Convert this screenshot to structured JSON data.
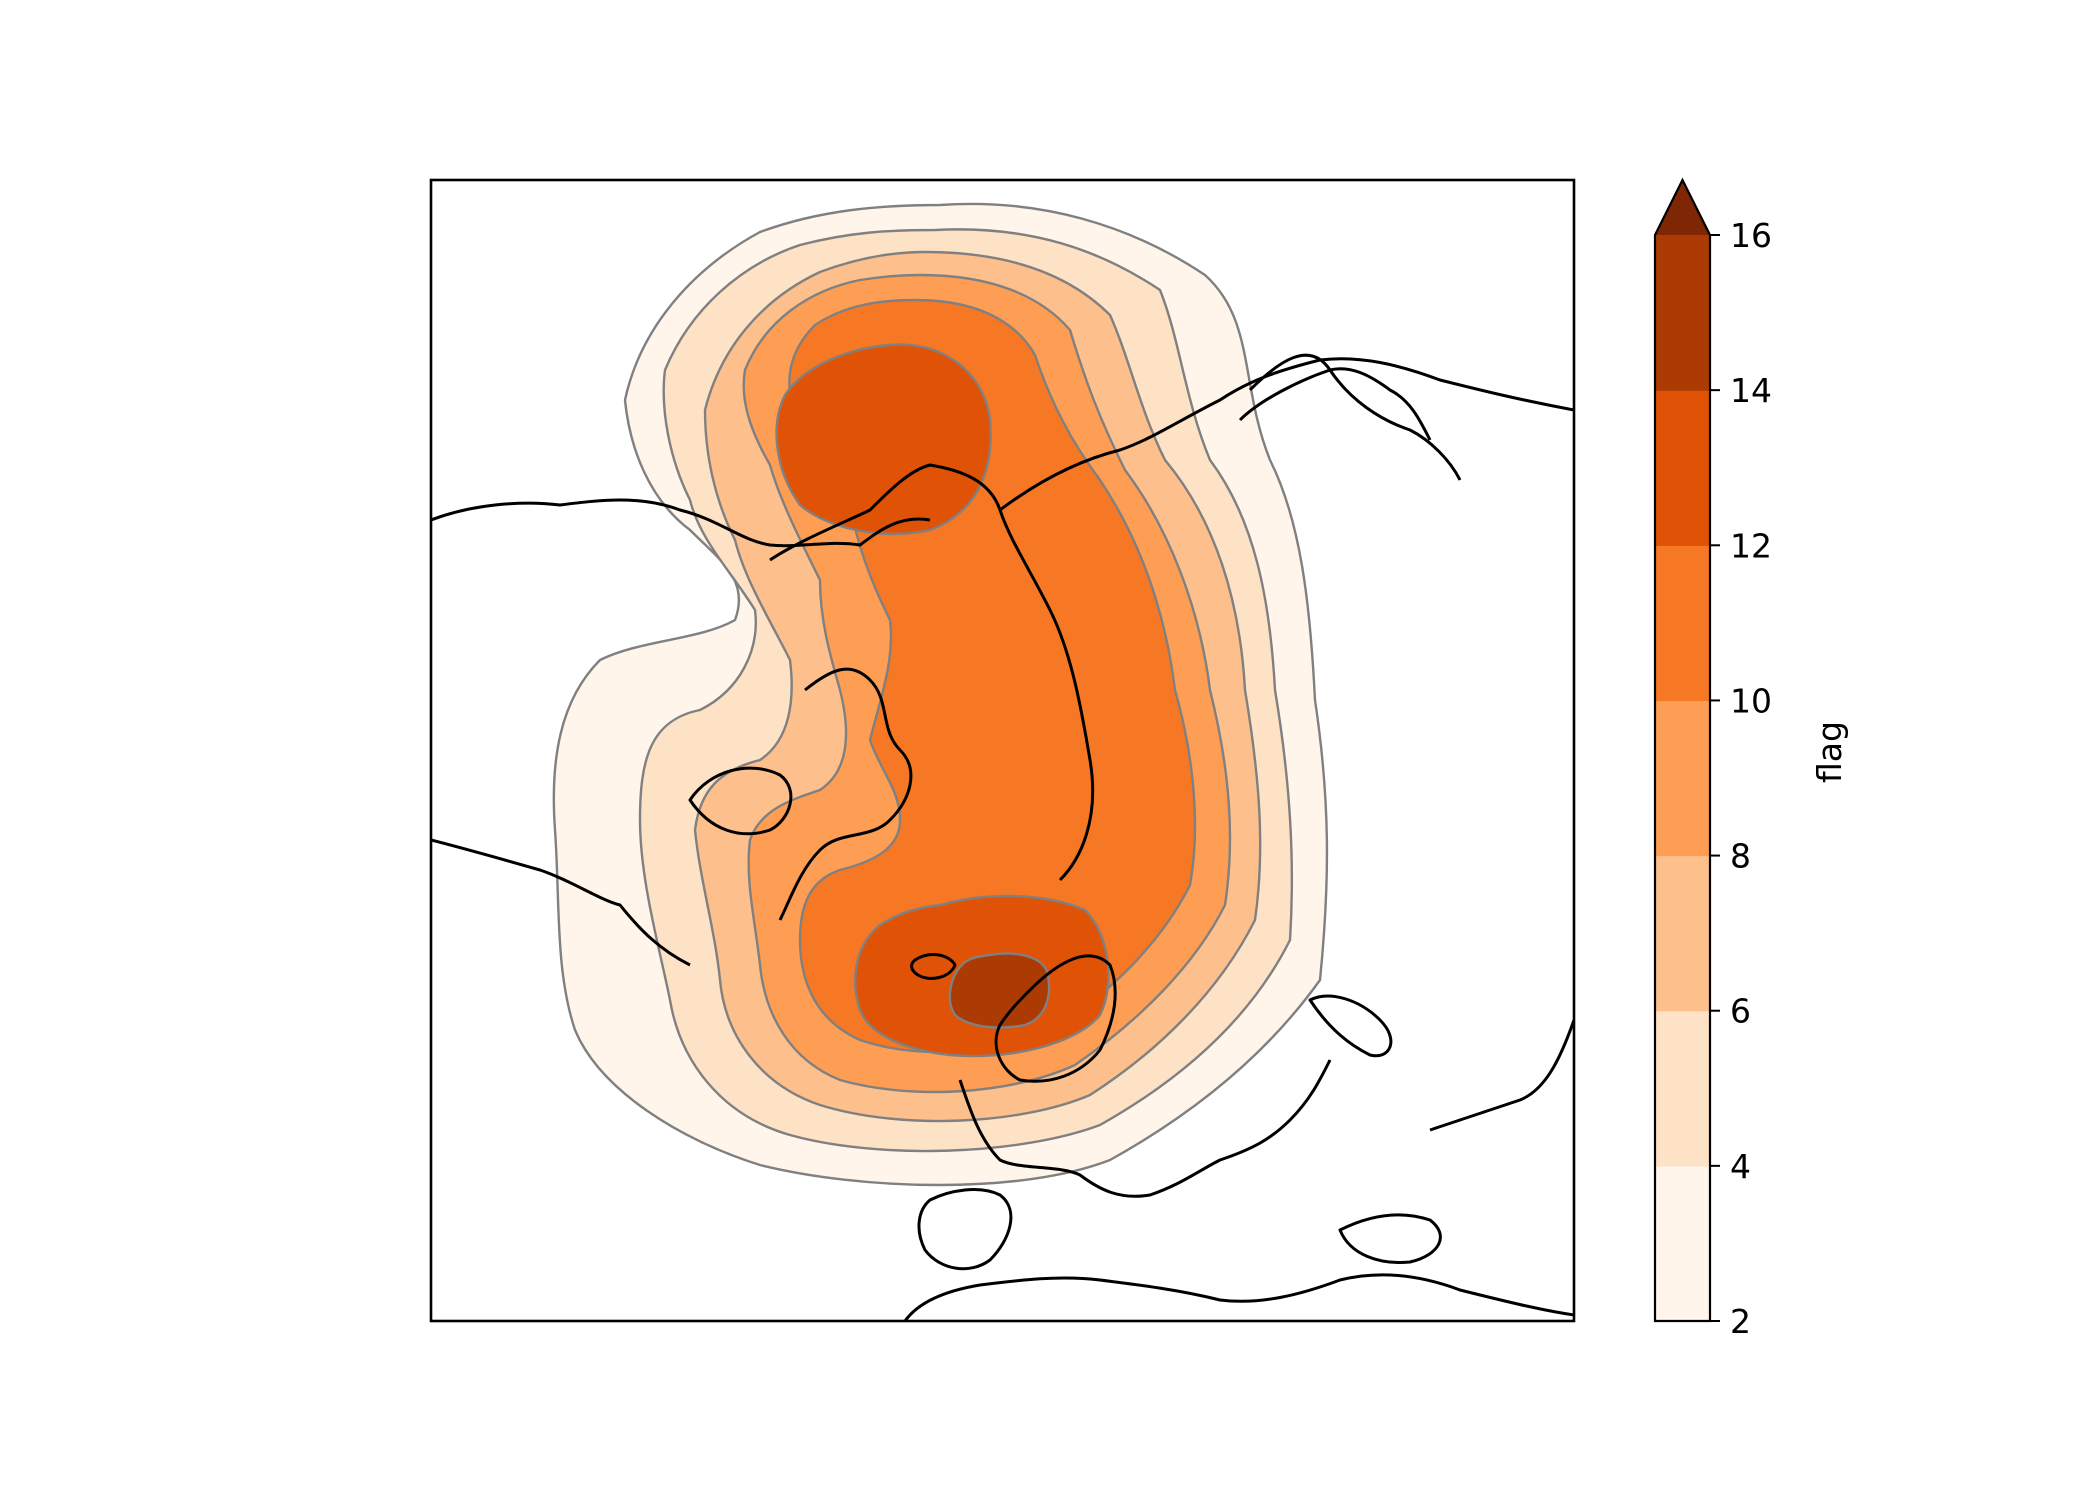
{
  "chart_data": {
    "type": "heatmap",
    "projection": "north-polar-stereographic",
    "title": "",
    "field": "contour-filled",
    "colormap": "Oranges",
    "levels": [
      2,
      4,
      6,
      8,
      10,
      12,
      14,
      16
    ],
    "extend": "max",
    "colors": [
      "#fff5eb",
      "#fee2c6",
      "#fdc08c",
      "#fd9e54",
      "#f67824",
      "#e05206",
      "#ac3a03",
      "#7f2704"
    ],
    "contour_line_color": "#808080",
    "coastline_color": "#000000",
    "colorbar": {
      "label": "flag",
      "placement": "right",
      "ticks": [
        "2",
        "4",
        "6",
        "8",
        "10",
        "12",
        "14",
        "16"
      ]
    }
  }
}
